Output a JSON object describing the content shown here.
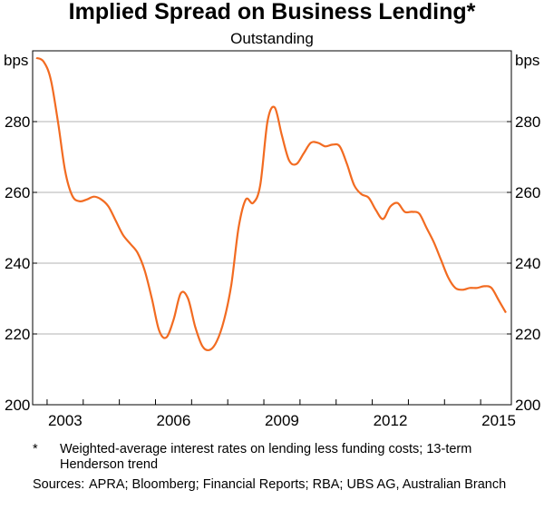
{
  "chart_data": {
    "type": "line",
    "title": "Implied Spread on Business Lending*",
    "subtitle": "Outstanding",
    "ylabel_left": "bps",
    "ylabel_right": "bps",
    "xlim": [
      2002.6,
      2015.85
    ],
    "ylim": [
      200,
      300
    ],
    "yticks": [
      200,
      220,
      240,
      260,
      280
    ],
    "xticks": [
      2003,
      2006,
      2009,
      2012,
      2015
    ],
    "xtick_labels": [
      "2003",
      "2006",
      "2009",
      "2012",
      "2015"
    ],
    "ytick_labels": [
      "200",
      "220",
      "240",
      "260",
      "280"
    ],
    "grid": true,
    "line_color": "#f26b21",
    "series": [
      {
        "x": [
          2002.7,
          2002.9,
          2003.1,
          2003.3,
          2003.5,
          2003.7,
          2003.9,
          2004.1,
          2004.3,
          2004.5,
          2004.7,
          2004.9,
          2005.1,
          2005.3,
          2005.5,
          2005.7,
          2005.9,
          2006.1,
          2006.3,
          2006.5,
          2006.7,
          2006.9,
          2007.1,
          2007.3,
          2007.5,
          2007.7,
          2007.9,
          2008.1,
          2008.3,
          2008.5,
          2008.7,
          2008.9,
          2009.1,
          2009.3,
          2009.5,
          2009.7,
          2009.9,
          2010.1,
          2010.3,
          2010.5,
          2010.7,
          2010.9,
          2011.1,
          2011.3,
          2011.5,
          2011.7,
          2011.9,
          2012.1,
          2012.3,
          2012.5,
          2012.7,
          2012.9,
          2013.1,
          2013.3,
          2013.5,
          2013.7,
          2013.9,
          2014.1,
          2014.3,
          2014.5,
          2014.7,
          2014.9,
          2015.1,
          2015.3,
          2015.5,
          2015.7
        ],
        "values": [
          298,
          297,
          292,
          280,
          266,
          259,
          257.5,
          258,
          258.8,
          258,
          256,
          252,
          248,
          245.5,
          243,
          238,
          230,
          221,
          219,
          224,
          231.5,
          230,
          222,
          216.5,
          215.5,
          218,
          224,
          234,
          250,
          258,
          257,
          262,
          280,
          284,
          276,
          269,
          268,
          271,
          274,
          274,
          273,
          273.5,
          273,
          268,
          262,
          259.5,
          258.5,
          255,
          252.5,
          256,
          257,
          254.5,
          254.5,
          254,
          250,
          246,
          241,
          236,
          233,
          232.5,
          233,
          233,
          233.5,
          233,
          229.5,
          226
        ]
      }
    ]
  },
  "notes": {
    "footnote_mark": "*",
    "footnote_text": "Weighted-average interest rates on lending less funding costs; 13-term Henderson trend",
    "sources_label": "Sources:",
    "sources_text": "APRA; Bloomberg; Financial Reports; RBA; UBS AG, Australian Branch"
  }
}
